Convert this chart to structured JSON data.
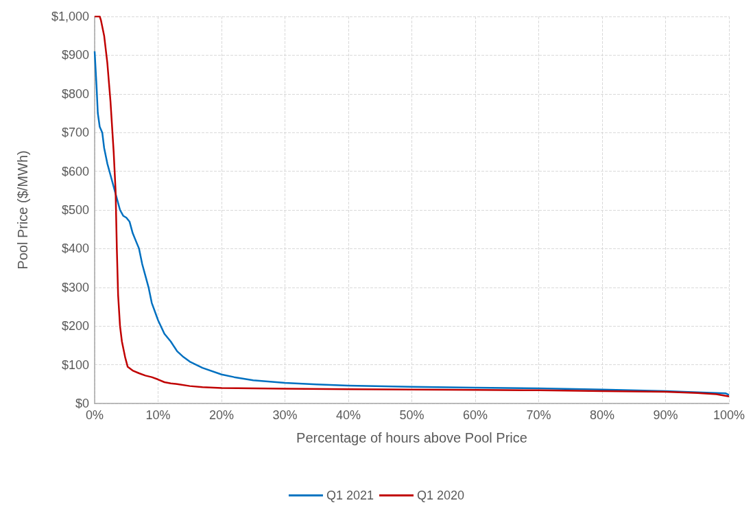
{
  "chart_data": {
    "type": "line",
    "xlabel": "Percentage of hours above Pool Price",
    "ylabel": "Pool Price ($/MWh)",
    "xlim": [
      0,
      100
    ],
    "ylim": [
      0,
      1000
    ],
    "xticks": [
      {
        "value": 0,
        "label": "0%"
      },
      {
        "value": 10,
        "label": "10%"
      },
      {
        "value": 20,
        "label": "20%"
      },
      {
        "value": 30,
        "label": "30%"
      },
      {
        "value": 40,
        "label": "40%"
      },
      {
        "value": 50,
        "label": "50%"
      },
      {
        "value": 60,
        "label": "60%"
      },
      {
        "value": 70,
        "label": "70%"
      },
      {
        "value": 80,
        "label": "80%"
      },
      {
        "value": 90,
        "label": "90%"
      },
      {
        "value": 100,
        "label": "100%"
      }
    ],
    "yticks": [
      {
        "value": 0,
        "label": "$0"
      },
      {
        "value": 100,
        "label": "$100"
      },
      {
        "value": 200,
        "label": "$200"
      },
      {
        "value": 300,
        "label": "$300"
      },
      {
        "value": 400,
        "label": "$400"
      },
      {
        "value": 500,
        "label": "$500"
      },
      {
        "value": 600,
        "label": "$600"
      },
      {
        "value": 700,
        "label": "$700"
      },
      {
        "value": 800,
        "label": "$800"
      },
      {
        "value": 900,
        "label": "$900"
      },
      {
        "value": 1000,
        "label": "$1,000"
      }
    ],
    "grid": true,
    "legend": "bottom",
    "marker": "none",
    "line_style": "solid",
    "series": [
      {
        "name": "Q1 2021",
        "color": "#0070c0",
        "x": [
          0,
          0.3,
          0.5,
          0.8,
          1.2,
          1.5,
          2,
          2.5,
          3,
          3.5,
          4,
          4.5,
          5,
          5.5,
          6,
          6.5,
          7,
          7.5,
          8,
          8.5,
          9,
          10,
          11,
          12,
          13,
          14,
          15,
          17,
          20,
          22,
          25,
          30,
          35,
          40,
          50,
          60,
          70,
          80,
          90,
          95,
          99.5,
          100
        ],
        "values": [
          910,
          820,
          750,
          715,
          700,
          660,
          620,
          590,
          560,
          530,
          500,
          485,
          480,
          470,
          440,
          420,
          400,
          360,
          330,
          300,
          260,
          215,
          180,
          160,
          135,
          120,
          108,
          92,
          75,
          68,
          60,
          53,
          49,
          46,
          43,
          41,
          39,
          36,
          32,
          29,
          26,
          22
        ]
      },
      {
        "name": "Q1 2020",
        "color": "#c00000",
        "x": [
          0,
          0.8,
          1,
          1.5,
          2,
          2.5,
          3,
          3.3,
          3.5,
          3.7,
          4,
          4.3,
          4.8,
          5.2,
          6,
          7,
          8,
          9,
          10,
          11,
          12,
          13,
          15,
          17,
          20,
          30,
          40,
          50,
          60,
          70,
          80,
          90,
          95,
          98,
          100
        ],
        "values": [
          1000,
          1000,
          990,
          950,
          880,
          780,
          650,
          550,
          400,
          280,
          200,
          160,
          120,
          95,
          85,
          78,
          72,
          68,
          62,
          55,
          52,
          50,
          45,
          42,
          40,
          38,
          37,
          36,
          35,
          34,
          32,
          30,
          27,
          24,
          18
        ]
      }
    ]
  }
}
